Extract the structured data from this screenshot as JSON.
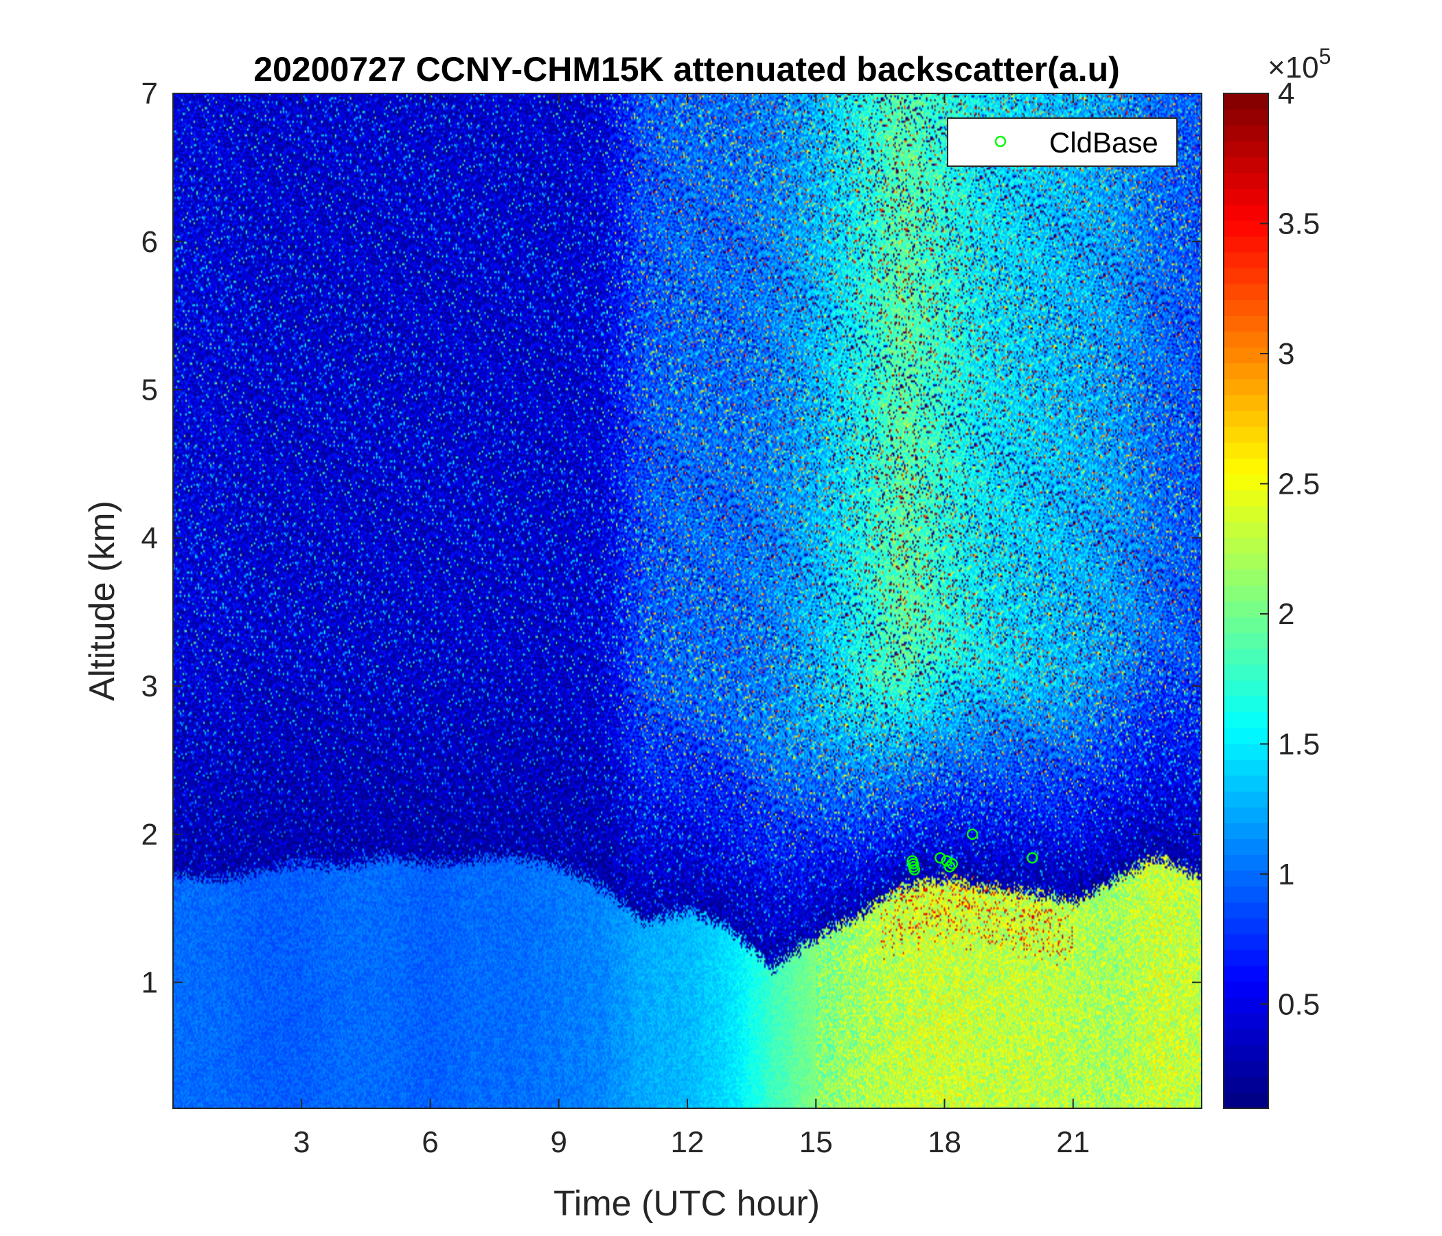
{
  "chart_data": {
    "type": "heatmap",
    "title": "20200727 CCNY-CHM15K attenuated backscatter(a.u)",
    "xlabel": "Time (UTC hour)",
    "ylabel": "Altitude (km)",
    "xlim": [
      0,
      24
    ],
    "ylim": [
      0.15,
      7
    ],
    "x_ticks": [
      3,
      6,
      9,
      12,
      15,
      18,
      21
    ],
    "y_ticks": [
      1,
      2,
      3,
      4,
      5,
      6,
      7
    ],
    "colorbar": {
      "colormap": "jet",
      "range": [
        0.1,
        4
      ],
      "ticks": [
        0.5,
        1,
        1.5,
        2,
        2.5,
        3,
        3.5,
        4
      ],
      "multiplier": "×10",
      "exponent": "5"
    },
    "grid": false,
    "legend": {
      "position": "top-right",
      "entries": [
        {
          "label": "CldBase",
          "marker": "open-circle",
          "color": "#00ff00"
        }
      ]
    },
    "scatter_series": {
      "name": "CldBase",
      "points": [
        {
          "x": 17.25,
          "y": 1.82
        },
        {
          "x": 17.27,
          "y": 1.8
        },
        {
          "x": 17.28,
          "y": 1.78
        },
        {
          "x": 17.3,
          "y": 1.76
        },
        {
          "x": 17.9,
          "y": 1.84
        },
        {
          "x": 18.05,
          "y": 1.82
        },
        {
          "x": 18.12,
          "y": 1.78
        },
        {
          "x": 18.18,
          "y": 1.8
        },
        {
          "x": 18.65,
          "y": 2.0
        },
        {
          "x": 20.05,
          "y": 1.84
        }
      ]
    },
    "regions_description_values": {
      "boundary_layer_top_km": [
        [
          0,
          1.72
        ],
        [
          1,
          1.7
        ],
        [
          2,
          1.75
        ],
        [
          3,
          1.8
        ],
        [
          4,
          1.78
        ],
        [
          5,
          1.85
        ],
        [
          6,
          1.8
        ],
        [
          7,
          1.82
        ],
        [
          8,
          1.85
        ],
        [
          9,
          1.78
        ],
        [
          10,
          1.65
        ],
        [
          11,
          1.4
        ],
        [
          12,
          1.5
        ],
        [
          13,
          1.35
        ],
        [
          14,
          1.1
        ],
        [
          15,
          1.3
        ],
        [
          16,
          1.45
        ],
        [
          17,
          1.65
        ],
        [
          18,
          1.7
        ],
        [
          19,
          1.65
        ],
        [
          20,
          1.6
        ],
        [
          21,
          1.55
        ],
        [
          22,
          1.7
        ],
        [
          23,
          1.85
        ],
        [
          24,
          1.7
        ]
      ],
      "bl_backscatter_by_hour": [
        1.0,
        1.0,
        0.95,
        0.95,
        1.0,
        1.0,
        0.95,
        1.0,
        1.0,
        1.05,
        1.1,
        1.25,
        1.3,
        1.45,
        1.8,
        2.05,
        2.2,
        2.3,
        2.35,
        2.3,
        2.3,
        2.25,
        2.2,
        2.35,
        2.3
      ],
      "free_troposphere_backscatter_by_hour": [
        0.45,
        0.45,
        0.4,
        0.4,
        0.4,
        0.4,
        0.4,
        0.4,
        0.4,
        0.4,
        0.45,
        0.9,
        1.0,
        1.0,
        1.1,
        1.3,
        1.6,
        1.9,
        1.7,
        1.5,
        1.4,
        1.3,
        1.2,
        1.0,
        0.9
      ]
    }
  }
}
